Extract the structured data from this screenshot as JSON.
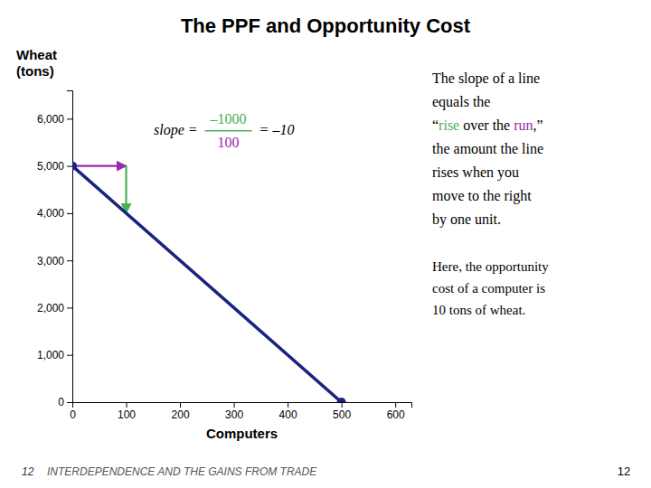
{
  "chart_data": {
    "type": "line",
    "title": "The PPF and Opportunity Cost",
    "x": [
      0,
      500
    ],
    "values": [
      5000,
      0
    ],
    "color": "#1a237e",
    "marker": "circle",
    "xlabel": "Computers",
    "ylabel": [
      "Wheat",
      "(tons)"
    ],
    "xlim": [
      0,
      630
    ],
    "ylim": [
      0,
      6600
    ],
    "xticks": [
      0,
      100,
      200,
      300,
      400,
      500,
      600
    ],
    "yticks": [
      0,
      {
        "value": 1000,
        "label": "1,000"
      },
      {
        "value": 2000,
        "label": "2,000"
      },
      {
        "value": 3000,
        "label": "3,000"
      },
      {
        "value": 4000,
        "label": "4,000"
      },
      {
        "value": 5000,
        "label": "5,000"
      },
      {
        "value": 6000,
        "label": "6,000"
      }
    ],
    "grid": false,
    "annotations": [
      {
        "type": "arrow",
        "x": [
          0,
          100
        ],
        "y": [
          5000,
          5000
        ],
        "color": "#9c27b0"
      },
      {
        "type": "arrow",
        "x": [
          100,
          100
        ],
        "y": [
          5000,
          4000
        ],
        "color": "#4caf50"
      },
      {
        "type": "fraction",
        "prefix": "slope = ",
        "numerator": "–1000",
        "numerator_color": "#4caf50",
        "line_color": "#4caf50",
        "denominator": "100",
        "denominator_color": "#9c27b0",
        "suffix": "= –10"
      },
      {
        "type": "note",
        "lines": [
          [
            {
              "text": "The slope of a line"
            }
          ],
          [
            {
              "text": "equals the"
            }
          ],
          [
            {
              "text": "“"
            },
            {
              "text": "rise",
              "color": "#4caf50"
            },
            {
              "text": " over the "
            },
            {
              "text": "run",
              "color": "#9c27b0"
            },
            {
              "text": ",”"
            }
          ],
          [
            {
              "text": "the amount the line"
            }
          ],
          [
            {
              "text": "rises when you"
            }
          ],
          [
            {
              "text": "move to the right"
            }
          ],
          [
            {
              "text": "by one unit."
            }
          ]
        ]
      },
      {
        "type": "note",
        "lines": [
          [
            {
              "text": "Here, the opportunity"
            }
          ],
          [
            {
              "text": "cost of a computer is"
            }
          ],
          [
            {
              "text": "10 tons of wheat."
            }
          ]
        ]
      },
      {
        "type": "footer",
        "number": "12",
        "text": "INTERDEPENDENCE AND THE GAINS FROM TRADE"
      }
    ]
  }
}
